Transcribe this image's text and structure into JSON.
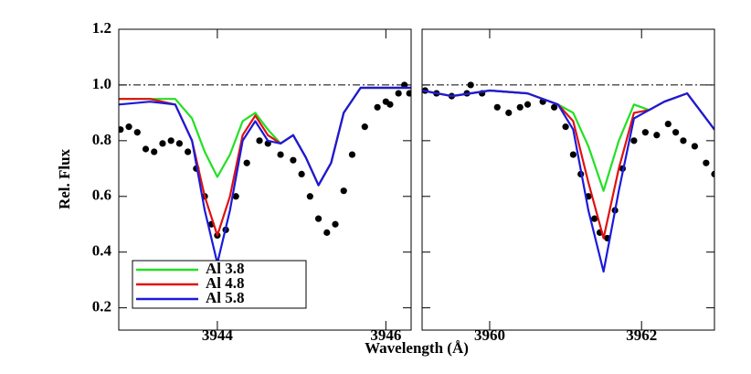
{
  "chart_data": [
    {
      "type": "line",
      "ylabel": "Rel. Flux",
      "xlabel": "Wavelength (Å)",
      "xlim": [
        3942.83,
        3946.3
      ],
      "ylim": [
        0.12,
        1.2
      ],
      "xticks": [
        3944,
        3946
      ],
      "yticks": [
        0.2,
        0.4,
        0.6,
        0.8,
        {
          "value": 1,
          "label": "1.0"
        },
        1.2
      ],
      "hline": 1.0,
      "legend": "lower left",
      "series": [
        {
          "color": "#000000",
          "mode": "markers",
          "x": [
            3942.85,
            3942.95,
            3943.05,
            3943.15,
            3943.25,
            3943.35,
            3943.45,
            3943.55,
            3943.65,
            3943.75,
            3943.85,
            3943.93,
            3944.0,
            3944.1,
            3944.22,
            3944.35,
            3944.5,
            3944.6,
            3944.75,
            3944.9,
            3945.0,
            3945.1,
            3945.2,
            3945.3,
            3945.4,
            3945.5,
            3945.6,
            3945.75,
            3945.9,
            3946.0,
            3946.05,
            3946.15,
            3946.22,
            3946.28
          ],
          "values": [
            0.84,
            0.85,
            0.83,
            0.77,
            0.76,
            0.79,
            0.8,
            0.79,
            0.76,
            0.7,
            0.6,
            0.5,
            0.46,
            0.48,
            0.6,
            0.72,
            0.8,
            0.79,
            0.75,
            0.73,
            0.68,
            0.6,
            0.52,
            0.47,
            0.5,
            0.62,
            0.75,
            0.85,
            0.92,
            0.94,
            0.93,
            0.97,
            1.0,
            0.97
          ]
        },
        {
          "name": "Al 3.8",
          "color": "#22e022",
          "x": [
            3942.83,
            3943.2,
            3943.5,
            3943.7,
            3943.85,
            3944.0,
            3944.15,
            3944.3,
            3944.45,
            3944.6,
            3944.75,
            3944.9,
            3945.05,
            3945.2,
            3945.35,
            3945.5,
            3945.7,
            3946.0,
            3946.3
          ],
          "values": [
            0.95,
            0.95,
            0.95,
            0.88,
            0.76,
            0.67,
            0.75,
            0.87,
            0.9,
            0.84,
            0.79,
            0.82,
            0.74,
            0.64,
            0.72,
            0.9,
            0.99,
            0.99,
            0.99
          ]
        },
        {
          "name": "Al 4.8",
          "color": "#e01010",
          "x": [
            3942.83,
            3943.2,
            3943.5,
            3943.7,
            3943.85,
            3944.0,
            3944.15,
            3944.3,
            3944.45,
            3944.6,
            3944.75,
            3944.9,
            3945.05,
            3945.2,
            3945.35,
            3945.5,
            3945.7,
            3946.0,
            3946.3
          ],
          "values": [
            0.95,
            0.95,
            0.93,
            0.8,
            0.6,
            0.46,
            0.6,
            0.82,
            0.89,
            0.82,
            0.79,
            0.82,
            0.74,
            0.64,
            0.72,
            0.9,
            0.99,
            0.99,
            0.99
          ]
        },
        {
          "name": "Al 5.8",
          "color": "#1a1adc",
          "x": [
            3942.83,
            3943.2,
            3943.5,
            3943.7,
            3943.85,
            3944.0,
            3944.15,
            3944.3,
            3944.45,
            3944.6,
            3944.75,
            3944.9,
            3945.05,
            3945.2,
            3945.35,
            3945.5,
            3945.7,
            3946.0,
            3946.3
          ],
          "values": [
            0.93,
            0.94,
            0.93,
            0.8,
            0.55,
            0.36,
            0.55,
            0.8,
            0.87,
            0.8,
            0.79,
            0.82,
            0.74,
            0.64,
            0.72,
            0.9,
            0.99,
            0.99,
            0.99
          ]
        }
      ]
    },
    {
      "type": "line",
      "xlim": [
        3959.11,
        3962.96
      ],
      "ylim": [
        0.12,
        1.2
      ],
      "xticks": [
        3960,
        3962
      ],
      "yticks": [
        0.2,
        0.4,
        0.6,
        0.8,
        1,
        1.2
      ],
      "hline": 1.0,
      "series": [
        {
          "color": "#000000",
          "mode": "markers",
          "x": [
            3959.15,
            3959.3,
            3959.5,
            3959.7,
            3959.75,
            3959.9,
            3960.1,
            3960.25,
            3960.4,
            3960.5,
            3960.7,
            3960.85,
            3961.0,
            3961.1,
            3961.2,
            3961.3,
            3961.38,
            3961.45,
            3961.55,
            3961.65,
            3961.75,
            3961.9,
            3962.05,
            3962.2,
            3962.35,
            3962.45,
            3962.55,
            3962.7,
            3962.85,
            3962.96
          ],
          "values": [
            0.98,
            0.97,
            0.96,
            0.97,
            1.0,
            0.97,
            0.92,
            0.9,
            0.92,
            0.93,
            0.94,
            0.92,
            0.85,
            0.75,
            0.68,
            0.6,
            0.52,
            0.47,
            0.45,
            0.55,
            0.7,
            0.8,
            0.83,
            0.82,
            0.86,
            0.83,
            0.8,
            0.78,
            0.72,
            0.68
          ]
        },
        {
          "name": "Al 3.8",
          "color": "#22e022",
          "x": [
            3959.11,
            3959.5,
            3960.0,
            3960.5,
            3960.9,
            3961.1,
            3961.3,
            3961.5,
            3961.7,
            3961.9,
            3962.1,
            3962.3,
            3962.6,
            3962.96
          ],
          "values": [
            0.98,
            0.96,
            0.98,
            0.97,
            0.93,
            0.9,
            0.78,
            0.62,
            0.8,
            0.93,
            0.91,
            0.94,
            0.97,
            0.84
          ]
        },
        {
          "name": "Al 4.8",
          "color": "#e01010",
          "x": [
            3959.11,
            3959.5,
            3960.0,
            3960.5,
            3960.9,
            3961.1,
            3961.3,
            3961.5,
            3961.7,
            3961.9,
            3962.1,
            3962.3,
            3962.6,
            3962.96
          ],
          "values": [
            0.98,
            0.96,
            0.98,
            0.97,
            0.93,
            0.87,
            0.65,
            0.45,
            0.7,
            0.9,
            0.91,
            0.94,
            0.97,
            0.84
          ]
        },
        {
          "name": "Al 5.8",
          "color": "#1a1adc",
          "x": [
            3959.11,
            3959.5,
            3960.0,
            3960.5,
            3960.9,
            3961.1,
            3961.3,
            3961.5,
            3961.7,
            3961.9,
            3962.1,
            3962.3,
            3962.6,
            3962.96
          ],
          "values": [
            0.98,
            0.96,
            0.98,
            0.97,
            0.93,
            0.84,
            0.55,
            0.33,
            0.62,
            0.88,
            0.91,
            0.94,
            0.97,
            0.84
          ]
        }
      ]
    }
  ]
}
